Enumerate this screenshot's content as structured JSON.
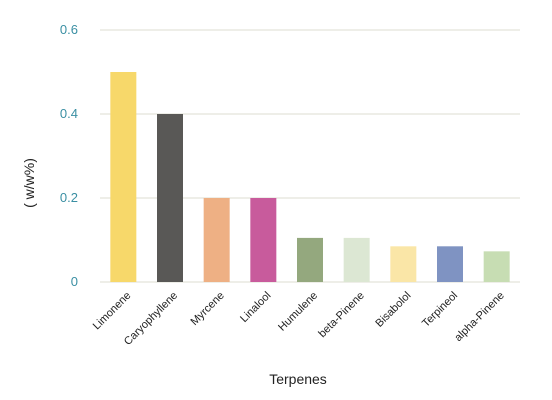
{
  "chart_data": {
    "type": "bar",
    "categories": [
      "Limonene",
      "Caryophyllene",
      "Myrcene",
      "Linalool",
      "Humulene",
      "beta-Pinene",
      "Bisabolol",
      "Terpineol",
      "alpha-Pinene"
    ],
    "values": [
      0.5,
      0.4,
      0.2,
      0.2,
      0.105,
      0.105,
      0.085,
      0.085,
      0.073
    ],
    "colors": [
      "#f7d86a",
      "#595856",
      "#eeb084",
      "#c85b9c",
      "#94a87e",
      "#dce7d3",
      "#fae6a7",
      "#7f93c2",
      "#c7ddb3"
    ],
    "xlabel": "Terpenes",
    "ylabel": "( w/w%)",
    "ylim": [
      0,
      0.6
    ],
    "yticks": [
      0,
      0.2,
      0.4,
      0.6
    ],
    "ytick_labels": [
      "0",
      "0.2",
      "0.4",
      "0.6"
    ],
    "grid": true
  }
}
